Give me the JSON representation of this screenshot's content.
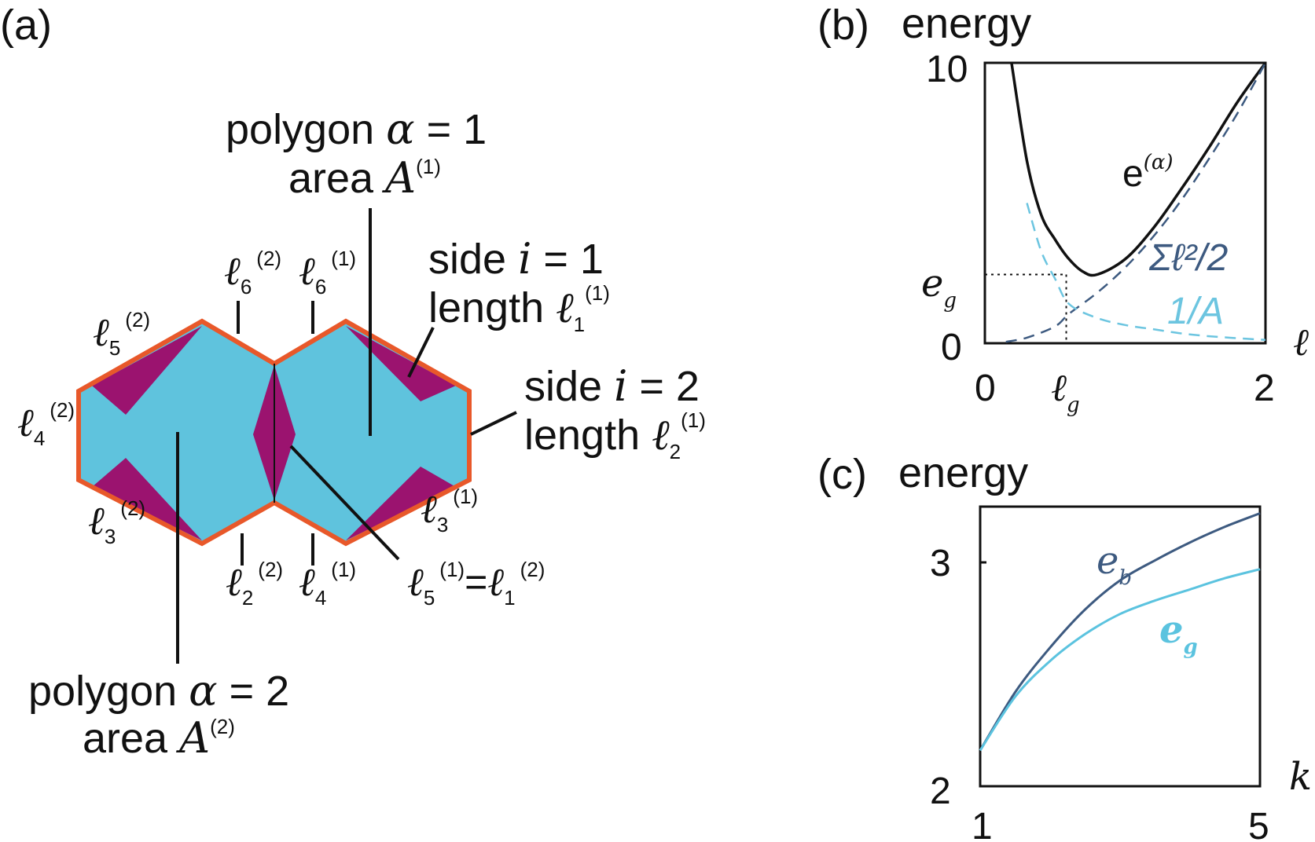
{
  "panel_a": {
    "panel_label": "(a)",
    "polygon1": {
      "line1": "polygon ",
      "alpha": "α",
      "eq": " = 1",
      "line2": "area ",
      "A": "A",
      "sup": "(1)"
    },
    "polygon2": {
      "line1": "polygon ",
      "alpha": "α",
      "eq": " = 2",
      "line2": "area  ",
      "A": "A",
      "sup": "(2)"
    },
    "side1": {
      "line1": "side ",
      "i": "i",
      "eq": " = 1",
      "line2": "length ",
      "ell": "ℓ",
      "sub": "1",
      "sup": "(1)"
    },
    "side2": {
      "line1": "side ",
      "i": "i",
      "eq": " = 2",
      "line2": "length ",
      "ell": "ℓ",
      "sub": "2",
      "sup": "(1)"
    },
    "edge_labels": [
      {
        "ell": "ℓ",
        "sub": "6",
        "sup": "(2)"
      },
      {
        "ell": "ℓ",
        "sub": "6",
        "sup": "(1)"
      },
      {
        "ell": "ℓ",
        "sub": "5",
        "sup": "(2)"
      },
      {
        "ell": "ℓ",
        "sub": "4",
        "sup": "(2)"
      },
      {
        "ell": "ℓ",
        "sub": "3",
        "sup": "(2)"
      },
      {
        "ell": "ℓ",
        "sub": "3",
        "sup": "(1)"
      },
      {
        "ell": "ℓ",
        "sub": "2",
        "sup": "(2)"
      },
      {
        "ell": "ℓ",
        "sub": "4",
        "sup": "(1)"
      }
    ],
    "shared_edge": {
      "left_ell": "ℓ",
      "left_sub": "5",
      "left_sup": "(1)",
      "eq": "=",
      "right_ell": "ℓ",
      "right_sub": "1",
      "right_sup": "(2)"
    },
    "colors": {
      "cell": "#5fc3dd",
      "triangle": "#9b136f",
      "border": "#e8582a"
    }
  },
  "panel_b": {
    "panel_label": "(b)",
    "ylabel": "energy",
    "xlabel": "ℓ",
    "yticks": [
      "10",
      "0"
    ],
    "xticks": [
      "0",
      "2"
    ],
    "eg_label": {
      "e": "e",
      "sub": "g"
    },
    "lg_label": {
      "ell": "ℓ",
      "sub": "g"
    },
    "curve_label_total": {
      "e": "e",
      "sup": "(α)"
    },
    "curve_label_sq": "Σℓ²/2",
    "curve_label_inv": "1/A",
    "colors": {
      "total": "#111111",
      "sq": "#3d5a80",
      "inv": "#6cc5e0"
    }
  },
  "panel_c": {
    "panel_label": "(c)",
    "ylabel": "energy",
    "xlabel": "k",
    "yticks": [
      "3",
      "2"
    ],
    "xticks": [
      "1",
      "5"
    ],
    "label_eb": {
      "e": "e",
      "sub": "b"
    },
    "label_eg": {
      "e": "e",
      "sub": "g"
    },
    "colors": {
      "eb": "#3d5a80",
      "eg": "#5bc3df"
    }
  },
  "chart_data": [
    {
      "type": "line",
      "panel": "(b)",
      "ylabel": "energy",
      "xlabel": "ℓ",
      "xlim": [
        0,
        2
      ],
      "ylim": [
        0,
        10
      ],
      "series": [
        {
          "name": "e(α)",
          "x": [
            0.19,
            0.3,
            0.4,
            0.5,
            0.6,
            0.7,
            0.8,
            1.0,
            1.2,
            1.4,
            1.6,
            1.8,
            2.0
          ],
          "y": [
            10,
            6.5,
            4.6,
            3.7,
            3.0,
            2.55,
            2.45,
            3.0,
            4.1,
            5.5,
            7.0,
            8.6,
            10
          ]
        },
        {
          "name": "Σℓ²/2",
          "x": [
            0.15,
            0.3,
            0.5,
            0.6,
            0.8,
            1.0,
            1.2,
            1.4,
            1.6,
            1.8,
            2.0
          ],
          "y": [
            0.05,
            0.2,
            0.6,
            1.05,
            1.8,
            2.7,
            3.8,
            5.1,
            6.6,
            8.2,
            10
          ]
        },
        {
          "name": "1/A",
          "x": [
            0.3,
            0.4,
            0.5,
            0.6,
            0.8,
            1.0,
            1.2,
            1.4,
            1.6,
            1.8,
            2.0
          ],
          "y": [
            5.0,
            3.3,
            2.3,
            1.4,
            0.9,
            0.65,
            0.5,
            0.35,
            0.25,
            0.18,
            0.12
          ]
        }
      ],
      "markers": {
        "eg": 2.45,
        "lg": 0.58
      }
    },
    {
      "type": "line",
      "panel": "(c)",
      "ylabel": "energy",
      "xlabel": "k",
      "xlim": [
        1,
        5
      ],
      "ylim": [
        2,
        3.25
      ],
      "series": [
        {
          "name": "e_b",
          "x": [
            1.0,
            1.5,
            2.0,
            2.5,
            3.0,
            3.5,
            4.0,
            4.5,
            5.0
          ],
          "y": [
            2.16,
            2.42,
            2.62,
            2.79,
            2.92,
            3.01,
            3.09,
            3.16,
            3.22
          ]
        },
        {
          "name": "e_g",
          "x": [
            1.0,
            1.5,
            2.0,
            2.5,
            3.0,
            3.5,
            4.0,
            4.5,
            5.0
          ],
          "y": [
            2.16,
            2.4,
            2.56,
            2.68,
            2.77,
            2.83,
            2.88,
            2.93,
            2.97
          ]
        }
      ]
    }
  ]
}
